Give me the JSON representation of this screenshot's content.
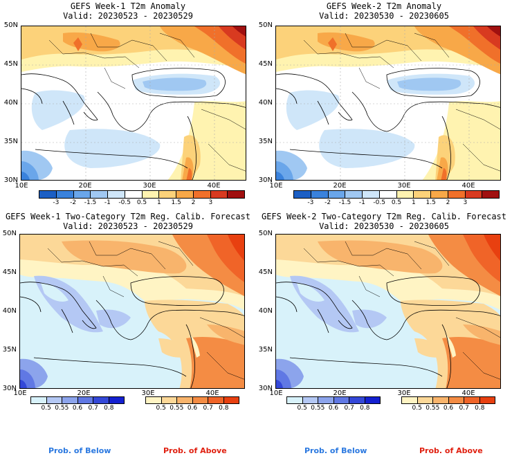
{
  "panels": {
    "tl": {
      "title_line1": "GEFS Week-1 T2m Anomaly",
      "title_line2": "Valid: 20230523 - 20230529"
    },
    "tr": {
      "title_line1": "GEFS Week-2 T2m Anomaly",
      "title_line2": "Valid: 20230530 - 20230605"
    },
    "bl": {
      "title_line1": "GEFS Week-1 Two-Category T2m Reg. Calib. Forecast",
      "title_line2": "Valid: 20230523 - 20230529"
    },
    "br": {
      "title_line1": "GEFS Week-2 Two-Category T2m Reg. Calib. Forecast",
      "title_line2": "Valid: 20230530 - 20230605"
    }
  },
  "axes": {
    "lat_labels": [
      "50N",
      "45N",
      "40N",
      "35N",
      "30N"
    ],
    "lon_labels": [
      "10E",
      "20E",
      "30E",
      "40E"
    ]
  },
  "anomaly_colorbar": {
    "labels": [
      "-3",
      "-2",
      "-1.5",
      "-1",
      "-0.5",
      "0.5",
      "1",
      "1.5",
      "2",
      "3"
    ],
    "colors": [
      "#1c5fc4",
      "#3a82dc",
      "#6aa6ea",
      "#a0c8f2",
      "#cfe6f9",
      "#ffffff",
      "#fff3b0",
      "#fcd27a",
      "#f8a848",
      "#f0702a",
      "#d83a20",
      "#a01010"
    ]
  },
  "prob_colorbars": {
    "below_labels": [
      "0.5",
      "0.55",
      "0.6",
      "0.7",
      "0.8"
    ],
    "below_colors": [
      "#d8f2fa",
      "#b4c8f4",
      "#8ca4ec",
      "#6078e4",
      "#3448d8",
      "#1420d0"
    ],
    "above_labels": [
      "0.5",
      "0.55",
      "0.6",
      "0.7",
      "0.8"
    ],
    "above_colors": [
      "#fff4c4",
      "#fcd898",
      "#f8b46c",
      "#f48c44",
      "#f06428",
      "#e84010"
    ]
  },
  "footer": {
    "below_label": "Prob. of Below",
    "above_label": "Prob. of Above",
    "below_color": "#2a78e0",
    "above_color": "#e02010"
  }
}
